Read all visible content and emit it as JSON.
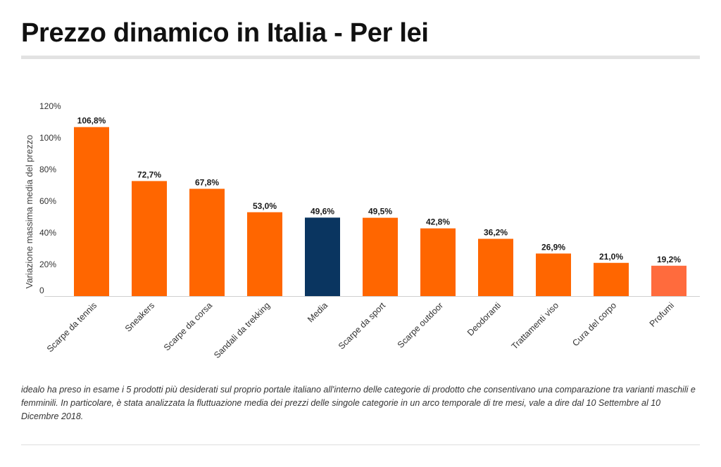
{
  "page": {
    "title": "Prezzo dinamico in Italia - Per lei",
    "footnote": "idealo ha preso in esame i 5 prodotti più desiderati sul proprio portale italiano all'interno delle categorie di prodotto che consentivano una comparazione tra varianti maschili e femminili. In particolare, è stata analizzata la fluttuazione media dei prezzi delle singole categorie in un arco temporale di tre mesi, vale a dire dal 10 Settembre al 10 Dicembre 2018."
  },
  "chart_data": {
    "type": "bar",
    "title": "Prezzo dinamico in Italia - Per lei",
    "ylabel": "Variazione massima media del prezzo",
    "xlabel": "",
    "ylim": [
      0,
      120
    ],
    "yticks": [
      0,
      20,
      40,
      60,
      80,
      100,
      120
    ],
    "ytick_labels": [
      "0",
      "20%",
      "40%",
      "60%",
      "80%",
      "100%",
      "120%"
    ],
    "grid": false,
    "categories": [
      "Scarpe da tennis",
      "Sneakers",
      "Scarpe da corsa",
      "Sandali da trekking",
      "Media",
      "Scarpe da sport",
      "Scarpe outdoor",
      "Deodoranti",
      "Trattamenti viso",
      "Cura del corpo",
      "Profumi"
    ],
    "values": [
      106.8,
      72.7,
      67.8,
      53.0,
      49.6,
      49.5,
      42.8,
      36.2,
      26.9,
      21.0,
      19.2
    ],
    "value_labels": [
      "106,8%",
      "72,7%",
      "67,8%",
      "53,0%",
      "49,6%",
      "49,5%",
      "42,8%",
      "36,2%",
      "26,9%",
      "21,0%",
      "19,2%"
    ],
    "colors": [
      "#ff6600",
      "#ff6600",
      "#ff6600",
      "#ff6600",
      "#0a3560",
      "#ff6600",
      "#ff6600",
      "#ff6600",
      "#ff6600",
      "#ff6600",
      "#ff6b3d"
    ]
  }
}
